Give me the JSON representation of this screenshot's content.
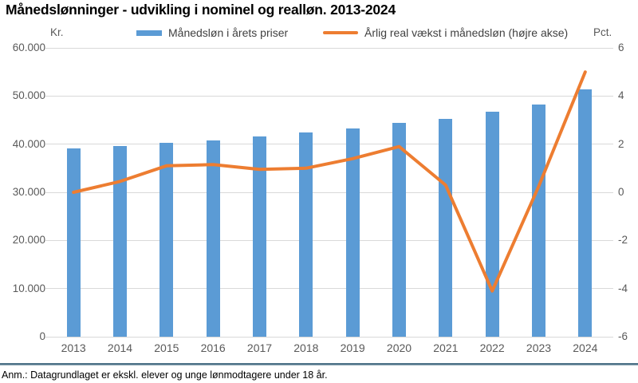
{
  "title": "Månedslønninger - udvikling i nominel og realløn. 2013-2024",
  "footnote": "Anm.: Datagrundlaget er ekskl. elever og unge lønmodtagere under 18 år.",
  "axes": {
    "left_unit": "Kr.",
    "right_unit": "Pct.",
    "left_ticks": [
      "60.000",
      "50.000",
      "40.000",
      "30.000",
      "20.000",
      "10.000",
      "0"
    ],
    "right_ticks": [
      "6",
      "4",
      "2",
      "0",
      "-2",
      "-4",
      "-6"
    ]
  },
  "legend": [
    {
      "label": "Månedsløn i årets priser",
      "marker": "bar"
    },
    {
      "label": "Årlig real vækst i månedsløn (højre akse)",
      "marker": "line"
    }
  ],
  "colors": {
    "bar": "#5B9BD5",
    "line": "#ED7D31",
    "gridline": "#D9D9D9",
    "axis_text": "#595959",
    "separator_dark": "#4F7389",
    "separator_light": "#8AA4B2"
  },
  "chart_data": {
    "type": "bar+line",
    "categories": [
      "2013",
      "2014",
      "2015",
      "2016",
      "2017",
      "2018",
      "2019",
      "2020",
      "2021",
      "2022",
      "2023",
      "2024"
    ],
    "series": [
      {
        "name": "Månedsløn i årets priser",
        "type": "bar",
        "axis": "left",
        "values": [
          39100,
          39600,
          40300,
          40800,
          41600,
          42400,
          43300,
          44400,
          45300,
          46700,
          48300,
          51400
        ]
      },
      {
        "name": "Årlig real vækst i månedsløn (højre akse)",
        "type": "line",
        "axis": "right",
        "values": [
          0.0,
          0.45,
          1.1,
          1.15,
          0.95,
          1.0,
          1.4,
          1.9,
          0.3,
          -4.1,
          0.25,
          5.0
        ]
      }
    ],
    "left_axis": {
      "label": "Kr.",
      "range": [
        0,
        60000
      ],
      "tick_step": 10000
    },
    "right_axis": {
      "label": "Pct.",
      "range": [
        -6,
        6
      ],
      "tick_step": 2
    },
    "grid": true,
    "legend_position": "top"
  }
}
